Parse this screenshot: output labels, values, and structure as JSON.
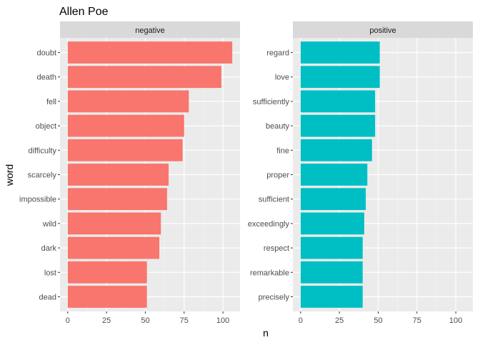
{
  "chart_data": {
    "type": "bar",
    "orientation": "horizontal",
    "title": "Allen Poe",
    "xlabel": "n",
    "ylabel": "word",
    "xlim": [
      -5,
      111
    ],
    "xticks": [
      0,
      25,
      50,
      75,
      100
    ],
    "grid": true,
    "legend": "none",
    "panels": [
      {
        "name": "negative",
        "color": "#F8766D",
        "categories": [
          "doubt",
          "death",
          "fell",
          "object",
          "difficulty",
          "scarcely",
          "impossible",
          "wild",
          "dark",
          "lost",
          "dead"
        ],
        "values": [
          106,
          99,
          78,
          75,
          74,
          65,
          64,
          60,
          59,
          51,
          51
        ]
      },
      {
        "name": "positive",
        "color": "#00BFC4",
        "categories": [
          "regard",
          "love",
          "sufficiently",
          "beauty",
          "fine",
          "proper",
          "sufficient",
          "exceedingly",
          "respect",
          "remarkable",
          "precisely"
        ],
        "values": [
          51,
          51,
          48,
          48,
          46,
          43,
          42,
          41,
          40,
          40,
          40
        ]
      }
    ]
  }
}
